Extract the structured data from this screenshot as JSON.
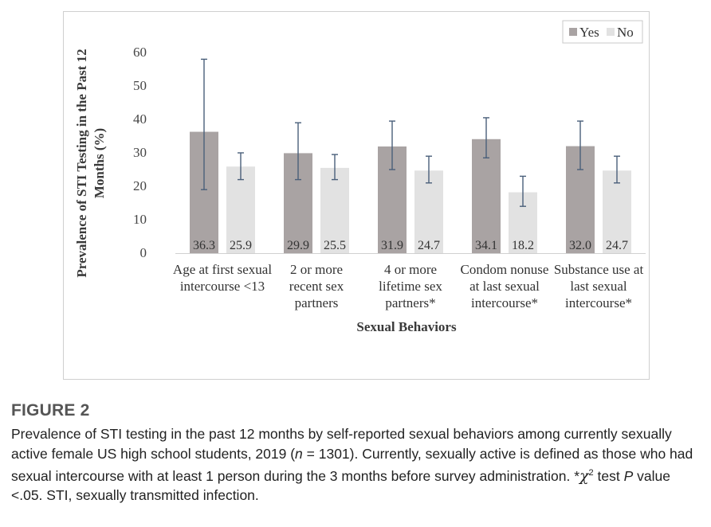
{
  "chart_data": {
    "type": "bar",
    "title": "",
    "xlabel": "Sexual Behaviors",
    "ylabel_lines": [
      "Prevalence of STI Testing in the Past 12",
      "Months (%)"
    ],
    "ylim": [
      0,
      60
    ],
    "yticks": [
      "0",
      "10",
      "20",
      "30",
      "40",
      "50",
      "60"
    ],
    "categories": [
      [
        "Age at first sexual",
        "intercourse <13"
      ],
      [
        "2 or more",
        "recent sex",
        "partners"
      ],
      [
        "4 or more",
        "lifetime sex",
        "partners*"
      ],
      [
        "Condom nonuse",
        "at last sexual",
        "intercourse*"
      ],
      [
        "Substance use at",
        "last sexual",
        "intercourse*"
      ]
    ],
    "series": [
      {
        "name": "Yes",
        "color": "#a9a3a3",
        "values": [
          36.3,
          29.9,
          31.9,
          34.1,
          32.0
        ],
        "labels": [
          "36.3",
          "29.9",
          "31.9",
          "34.1",
          "32.0"
        ],
        "error_low": [
          19.0,
          22.0,
          25.0,
          28.5,
          25.0
        ],
        "error_high": [
          58.0,
          39.0,
          39.5,
          40.5,
          39.5
        ]
      },
      {
        "name": "No",
        "color": "#e2e2e2",
        "values": [
          25.9,
          25.5,
          24.7,
          18.2,
          24.7
        ],
        "labels": [
          "25.9",
          "25.5",
          "24.7",
          "18.2",
          "24.7"
        ],
        "error_low": [
          22.0,
          22.0,
          21.0,
          14.0,
          21.0
        ],
        "error_high": [
          30.0,
          29.5,
          29.0,
          23.0,
          29.0
        ]
      }
    ],
    "legend_position": "top-right",
    "grid": false
  },
  "caption": {
    "heading": "FIGURE 2",
    "text_1": "Prevalence of STI testing in the past 12 months by self-reported sexual behaviors among currently sexually active female US high school students, 2019 (",
    "n_symbol": "n",
    "text_2": " = 1301). Currently, sexually active is defined as those who had sexual intercourse with at least 1 person during the 3 months before survey administration. *",
    "chi_symbol": "χ",
    "chi_sup": "2",
    "text_3": " test ",
    "p_symbol": "P",
    "text_4": " value <.05. STI, sexually transmitted infection."
  }
}
